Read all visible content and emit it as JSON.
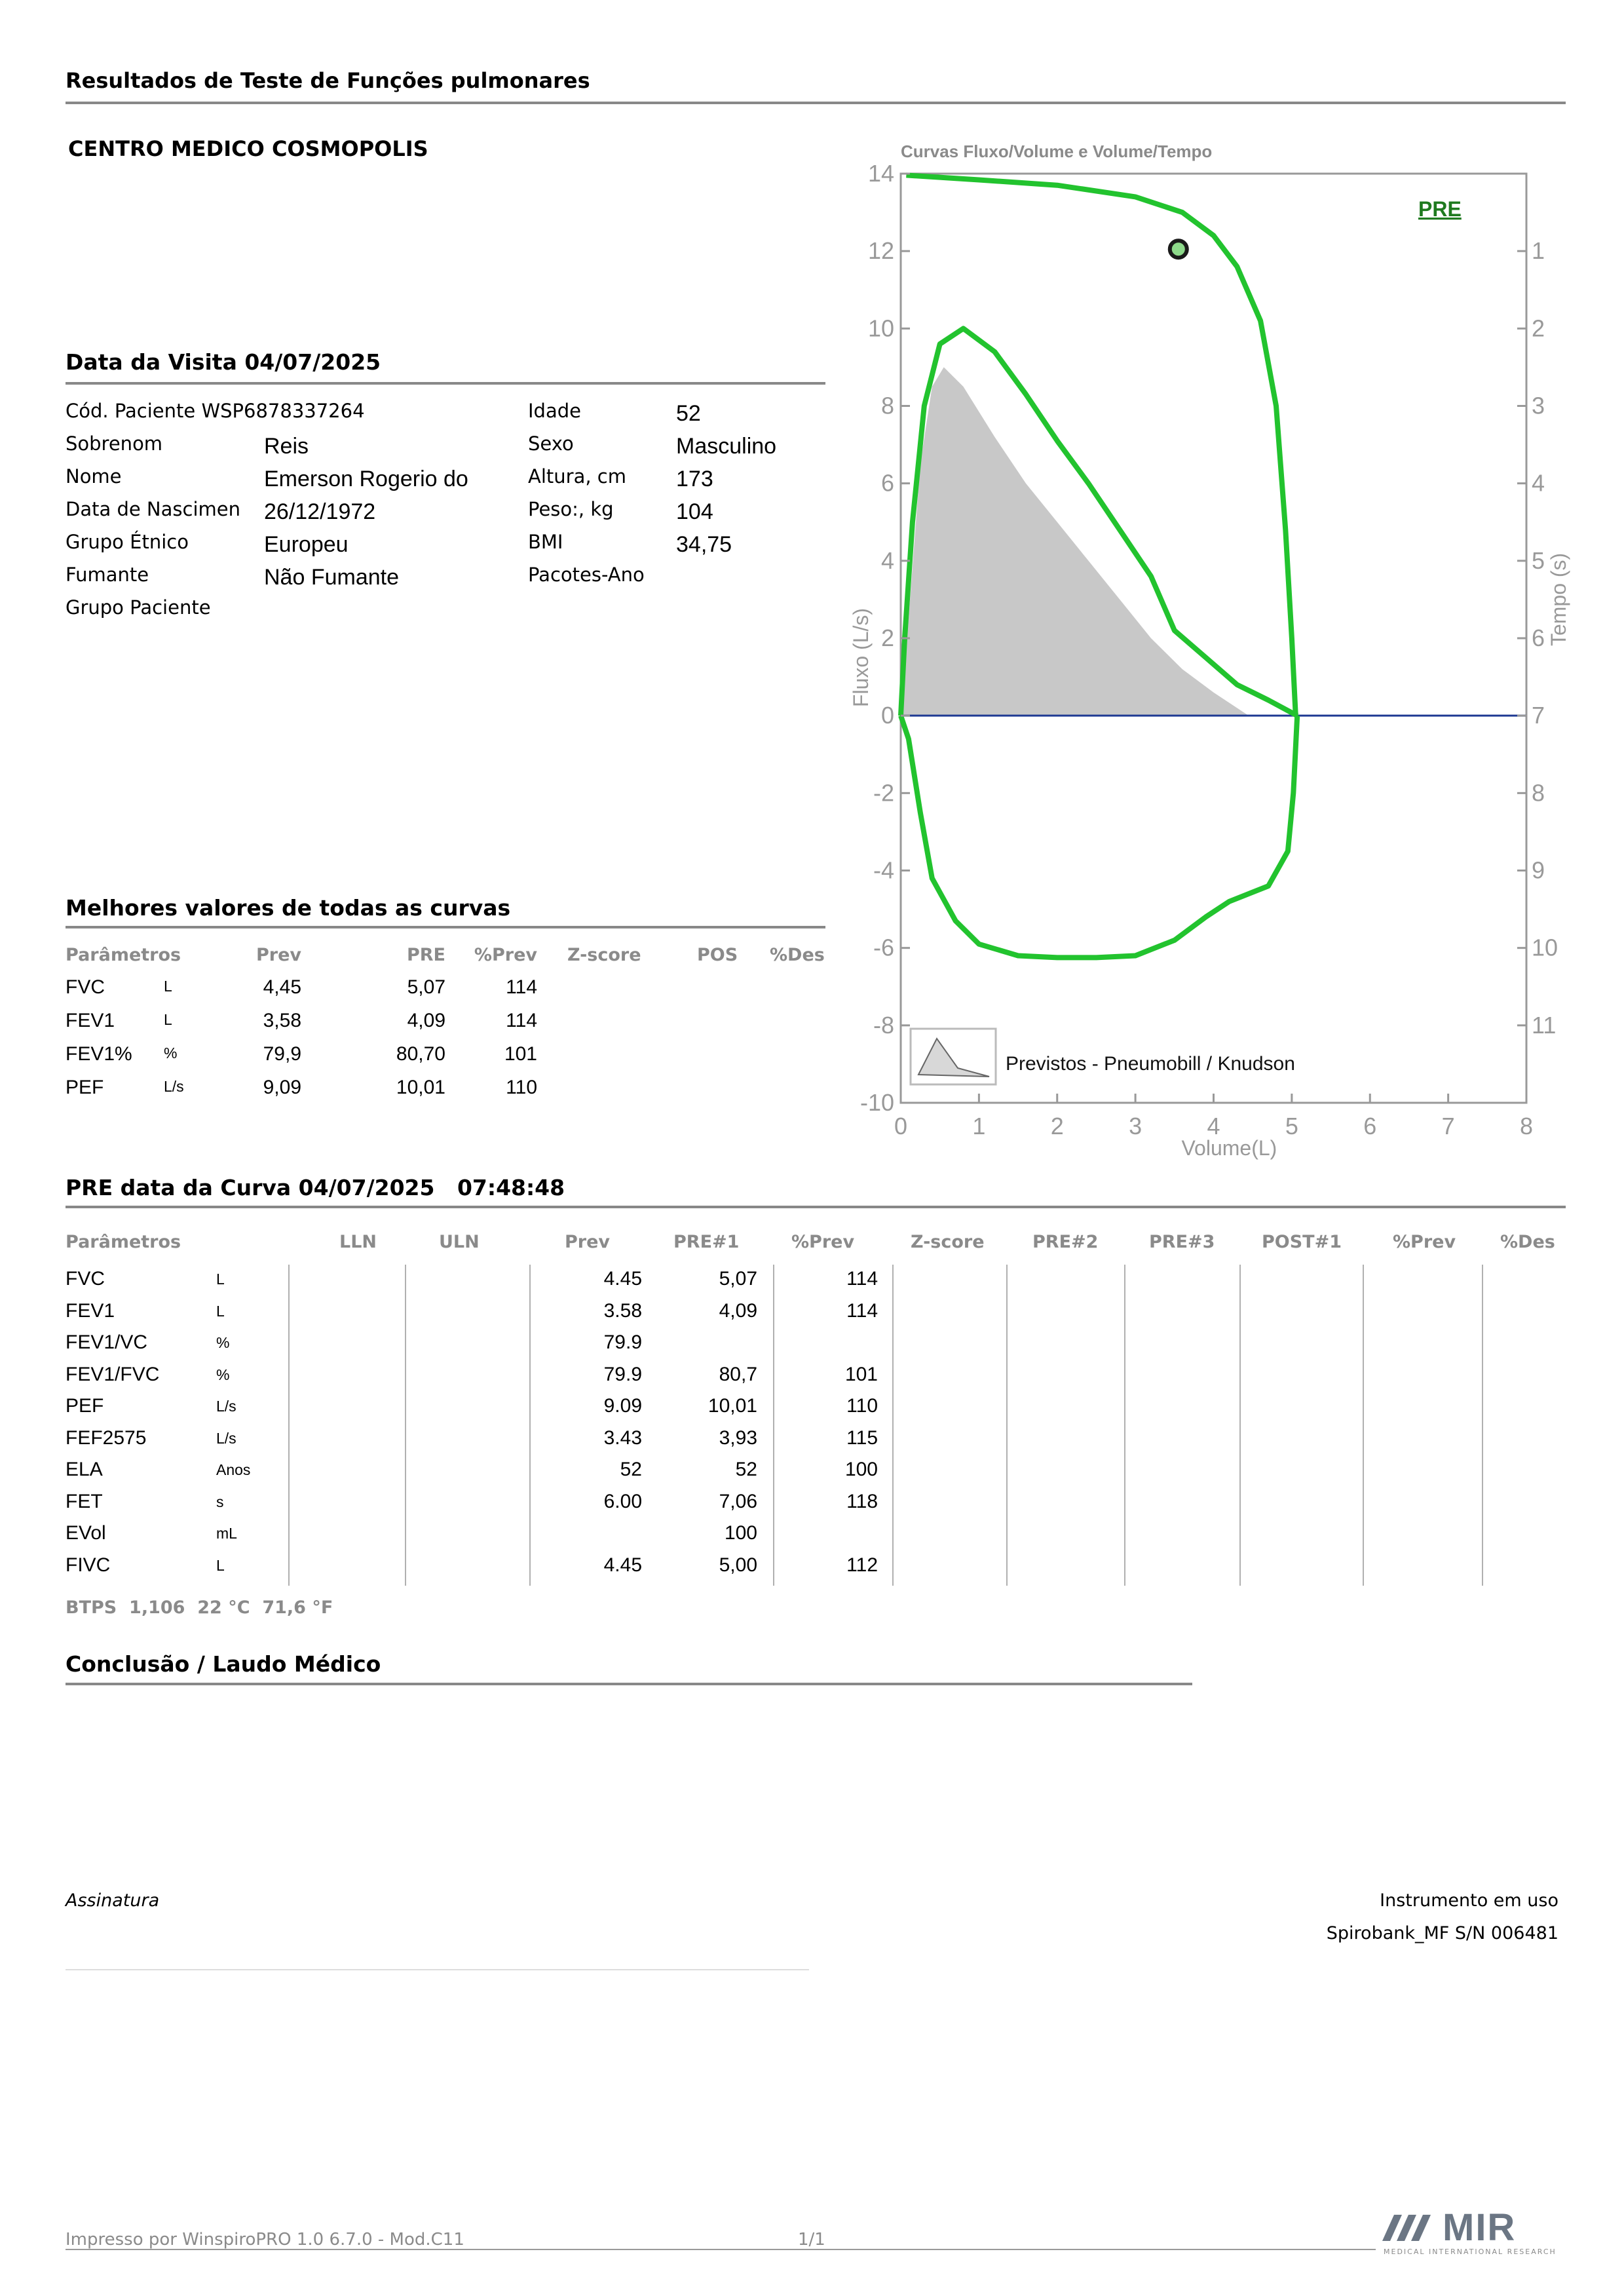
{
  "header": {
    "title": "Resultados de Teste de Funções pulmonares",
    "center": "CENTRO MEDICO COSMOPOLIS"
  },
  "visit": {
    "heading": "Data da Visita 04/07/2025",
    "patient_code": "Cód. Paciente WSP6878337264",
    "left": [
      {
        "label": "Sobrenom",
        "value": "Reis"
      },
      {
        "label": "Nome",
        "value": "Emerson Rogerio do"
      },
      {
        "label": "Data de Nascimen",
        "value": "26/12/1972"
      },
      {
        "label": "Grupo Étnico",
        "value": "Europeu"
      },
      {
        "label": "Fumante",
        "value": "Não Fumante"
      },
      {
        "label": "Grupo Paciente",
        "value": ""
      }
    ],
    "right": [
      {
        "label": "Idade",
        "value": "52"
      },
      {
        "label": "Sexo",
        "value": "Masculino"
      },
      {
        "label": "Altura, cm",
        "value": "173"
      },
      {
        "label": "Peso:, kg",
        "value": "104"
      },
      {
        "label": "BMI",
        "value": "34,75"
      },
      {
        "label": "Pacotes-Ano",
        "value": ""
      }
    ]
  },
  "best": {
    "heading": "Melhores valores de todas as curvas",
    "columns": [
      "Parâmetros",
      "Prev",
      "PRE",
      "%Prev",
      "Z-score",
      "POS",
      "%Des"
    ],
    "rows": [
      {
        "param": "FVC",
        "unit": "L",
        "prev": "4,45",
        "pre": "5,07",
        "pct": "114"
      },
      {
        "param": "FEV1",
        "unit": "L",
        "prev": "3,58",
        "pre": "4,09",
        "pct": "114"
      },
      {
        "param": "FEV1%",
        "unit": "%",
        "prev": "79,9",
        "pre": "80,70",
        "pct": "101"
      },
      {
        "param": "PEF",
        "unit": "L/s",
        "prev": "9,09",
        "pre": "10,01",
        "pct": "110"
      }
    ]
  },
  "curve": {
    "heading": "PRE data da Curva 04/07/2025   07:48:48",
    "columns": [
      "Parâmetros",
      "LLN",
      "ULN",
      "Prev",
      "PRE#1",
      "%Prev",
      "Z-score",
      "PRE#2",
      "PRE#3",
      "POST#1",
      "%Prev",
      "%Des"
    ],
    "rows": [
      {
        "param": "FVC",
        "unit": "L",
        "prev": "4.45",
        "pre1": "5,07",
        "pct": "114"
      },
      {
        "param": "FEV1",
        "unit": "L",
        "prev": "3.58",
        "pre1": "4,09",
        "pct": "114"
      },
      {
        "param": "FEV1/VC",
        "unit": "%",
        "prev": "79.9",
        "pre1": "",
        "pct": ""
      },
      {
        "param": "FEV1/FVC",
        "unit": "%",
        "prev": "79.9",
        "pre1": "80,7",
        "pct": "101"
      },
      {
        "param": "PEF",
        "unit": "L/s",
        "prev": "9.09",
        "pre1": "10,01",
        "pct": "110"
      },
      {
        "param": "FEF2575",
        "unit": "L/s",
        "prev": "3.43",
        "pre1": "3,93",
        "pct": "115"
      },
      {
        "param": "ELA",
        "unit": "Anos",
        "prev": "52",
        "pre1": "52",
        "pct": "100"
      },
      {
        "param": "FET",
        "unit": "s",
        "prev": "6.00",
        "pre1": "7,06",
        "pct": "118"
      },
      {
        "param": "EVol",
        "unit": "mL",
        "prev": "",
        "pre1": "100",
        "pct": ""
      },
      {
        "param": "FIVC",
        "unit": "L",
        "prev": "4.45",
        "pre1": "5,00",
        "pct": "112"
      }
    ],
    "btps": "BTPS  1,106  22 °C  71,6 °F"
  },
  "conclusion": {
    "heading": "Conclusão / Laudo Médico"
  },
  "signature": {
    "label": "Assinatura"
  },
  "instrument": {
    "label": "Instrumento em uso",
    "value": "Spirobank_MF S/N 006481"
  },
  "footer": {
    "printed": "Impresso por WinspiroPRO 1.0 6.7.0 - Mod.C11",
    "page": "1/1",
    "logo_text": "MIR",
    "logo_sub": "MEDICAL INTERNATIONAL RESEARCH"
  },
  "chart_data": {
    "type": "line",
    "title": "Curvas Fluxo/Volume e Volume/Tempo",
    "xlabel": "Volume(L)",
    "ylabel": "Fluxo (L/s)",
    "y2label": "Tempo (s)",
    "xlim": [
      0,
      8
    ],
    "ylim": [
      -10,
      14
    ],
    "y2lim": [
      0,
      12
    ],
    "x_ticks": [
      "0",
      "1",
      "2",
      "3",
      "4",
      "5",
      "6",
      "7",
      "8"
    ],
    "y_ticks": [
      "-10",
      "-8",
      "-6",
      "-4",
      "-2",
      "0",
      "2",
      "4",
      "6",
      "8",
      "10",
      "12",
      "14"
    ],
    "y2_ticks": [
      "1",
      "2",
      "3",
      "4",
      "5",
      "6",
      "7",
      "8",
      "9",
      "10",
      "11"
    ],
    "legend_label": "PRE",
    "legend_placement": "top-right",
    "predicted_label": "Previstos - Pneumobill / Knudson",
    "colors": {
      "measured": "#22c32e",
      "predicted": "#c8c8c8",
      "zero_line": "#1f3a93",
      "legend": "#1f7a1f"
    },
    "predicted_curve": [
      [
        0,
        0
      ],
      [
        0.1,
        2.5
      ],
      [
        0.25,
        6.5
      ],
      [
        0.4,
        8.5
      ],
      [
        0.55,
        9.0
      ],
      [
        0.8,
        8.5
      ],
      [
        1.2,
        7.2
      ],
      [
        1.6,
        6.0
      ],
      [
        2.0,
        5.0
      ],
      [
        2.4,
        4.0
      ],
      [
        2.8,
        3.0
      ],
      [
        3.2,
        2.0
      ],
      [
        3.6,
        1.2
      ],
      [
        4.0,
        0.6
      ],
      [
        4.45,
        0
      ]
    ],
    "measured_expiratory": [
      [
        0,
        0
      ],
      [
        0.05,
        2.0
      ],
      [
        0.15,
        5.0
      ],
      [
        0.3,
        8.0
      ],
      [
        0.5,
        9.6
      ],
      [
        0.8,
        10.0
      ],
      [
        1.2,
        9.4
      ],
      [
        1.6,
        8.3
      ],
      [
        2.0,
        7.1
      ],
      [
        2.4,
        6.0
      ],
      [
        2.8,
        4.8
      ],
      [
        3.2,
        3.6
      ],
      [
        3.5,
        2.2
      ],
      [
        3.9,
        1.5
      ],
      [
        4.3,
        0.8
      ],
      [
        4.7,
        0.4
      ],
      [
        5.07,
        0.0
      ]
    ],
    "measured_inspiratory": [
      [
        5.07,
        0.0
      ],
      [
        5.02,
        -2.0
      ],
      [
        4.95,
        -3.5
      ],
      [
        4.7,
        -4.4
      ],
      [
        4.2,
        -4.8
      ],
      [
        3.9,
        -5.2
      ],
      [
        3.5,
        -5.8
      ],
      [
        3.0,
        -6.2
      ],
      [
        2.5,
        -6.25
      ],
      [
        2.0,
        -6.25
      ],
      [
        1.5,
        -6.2
      ],
      [
        1.0,
        -5.9
      ],
      [
        0.7,
        -5.3
      ],
      [
        0.4,
        -4.2
      ],
      [
        0.25,
        -2.5
      ],
      [
        0.1,
        -0.6
      ],
      [
        0,
        0
      ]
    ],
    "volume_time": [
      [
        0.07,
        0.02
      ],
      [
        1.0,
        0.08
      ],
      [
        2.0,
        0.15
      ],
      [
        3.0,
        0.3
      ],
      [
        3.6,
        0.5
      ],
      [
        4.0,
        0.8
      ],
      [
        4.3,
        1.2
      ],
      [
        4.6,
        1.9
      ],
      [
        4.8,
        3.0
      ],
      [
        4.92,
        4.6
      ],
      [
        5.0,
        6.0
      ],
      [
        5.05,
        7.0
      ]
    ],
    "marker_point": [
      3.55,
      12.05
    ]
  }
}
